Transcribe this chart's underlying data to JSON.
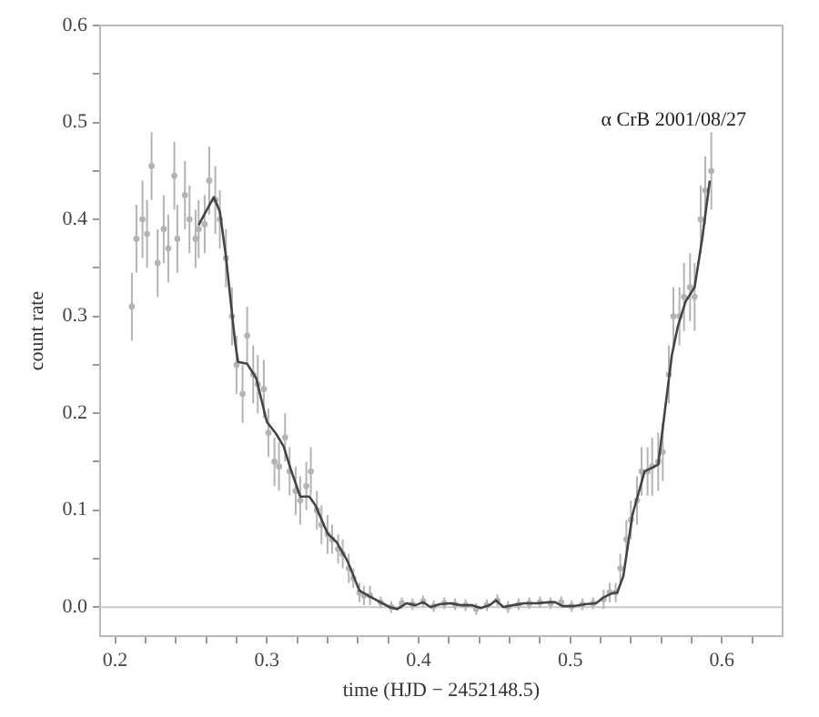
{
  "chart_data": {
    "type": "scatter",
    "xlabel": "time (HJD − 2452148.5)",
    "ylabel": "count rate",
    "annotations": [
      "α CrB 2001/08/27"
    ],
    "xlim": [
      0.19,
      0.64
    ],
    "ylim": [
      -0.03,
      0.6
    ],
    "xticks": [
      0.2,
      {
        "value": 0.22,
        "label": null
      },
      {
        "value": 0.24,
        "label": null
      },
      {
        "value": 0.26,
        "label": null
      },
      {
        "value": 0.28,
        "label": null
      },
      0.3,
      {
        "value": 0.32,
        "label": null
      },
      {
        "value": 0.34,
        "label": null
      },
      {
        "value": 0.36,
        "label": null
      },
      {
        "value": 0.38,
        "label": null
      },
      0.4,
      {
        "value": 0.42,
        "label": null
      },
      {
        "value": 0.44,
        "label": null
      },
      {
        "value": 0.46,
        "label": null
      },
      {
        "value": 0.48,
        "label": null
      },
      0.5,
      {
        "value": 0.52,
        "label": null
      },
      {
        "value": 0.54,
        "label": null
      },
      {
        "value": 0.56,
        "label": null
      },
      {
        "value": 0.58,
        "label": null
      },
      0.6,
      {
        "value": 0.62,
        "label": null
      }
    ],
    "yticks": [
      {
        "value": 0,
        "label": "0.0"
      },
      {
        "value": 0.05,
        "label": null
      },
      0.1,
      {
        "value": 0.15,
        "label": null
      },
      0.2,
      {
        "value": 0.25,
        "label": null
      },
      0.3,
      {
        "value": 0.35,
        "label": null
      },
      0.4,
      {
        "value": 0.45,
        "label": null
      },
      0.5,
      {
        "value": 0.55,
        "label": null
      },
      0.6
    ],
    "grid": false,
    "legend": false,
    "ref_lines": [
      {
        "axis": "y",
        "value": 0,
        "color": "#c8c8c8"
      }
    ],
    "series": [
      {
        "type": "scatter",
        "color": "#b4b4b4",
        "marker": "circle",
        "x": [
          0.211,
          0.214,
          0.218,
          0.221,
          0.224,
          0.228,
          0.232,
          0.235,
          0.239,
          0.241,
          0.246,
          0.249,
          0.253,
          0.255,
          0.259,
          0.262,
          0.266,
          0.269,
          0.273,
          0.277,
          0.28,
          0.284,
          0.287,
          0.291,
          0.294,
          0.298,
          0.301,
          0.305,
          0.308,
          0.312,
          0.315,
          0.319,
          0.322,
          0.326,
          0.329,
          0.333,
          0.336,
          0.34,
          0.343,
          0.347,
          0.35,
          0.354,
          0.357,
          0.361,
          0.364,
          0.368,
          0.375,
          0.382,
          0.389,
          0.396,
          0.403,
          0.41,
          0.417,
          0.424,
          0.431,
          0.438,
          0.445,
          0.452,
          0.459,
          0.466,
          0.473,
          0.48,
          0.487,
          0.494,
          0.501,
          0.508,
          0.515,
          0.522,
          0.526,
          0.53,
          0.533,
          0.537,
          0.54,
          0.544,
          0.547,
          0.551,
          0.554,
          0.558,
          0.561,
          0.565,
          0.568,
          0.572,
          0.575,
          0.579,
          0.582,
          0.586,
          0.589,
          0.593
        ],
        "values": [
          0.31,
          0.38,
          0.4,
          0.385,
          0.455,
          0.355,
          0.39,
          0.37,
          0.445,
          0.38,
          0.425,
          0.4,
          0.38,
          0.39,
          0.395,
          0.44,
          0.42,
          0.4,
          0.36,
          0.3,
          0.25,
          0.22,
          0.28,
          0.24,
          0.23,
          0.225,
          0.18,
          0.15,
          0.145,
          0.175,
          0.14,
          0.12,
          0.11,
          0.125,
          0.14,
          0.1,
          0.085,
          0.075,
          0.07,
          0.06,
          0.055,
          0.04,
          0.03,
          0.015,
          0.012,
          0.012,
          0.005,
          0.0,
          0.004,
          0.003,
          0.006,
          0.001,
          0.004,
          0.003,
          0.002,
          -0.002,
          0.002,
          0.007,
          0.0,
          0.003,
          0.004,
          0.005,
          0.004,
          0.005,
          0.001,
          0.003,
          0.004,
          0.008,
          0.015,
          0.015,
          0.04,
          0.07,
          0.09,
          0.11,
          0.14,
          0.14,
          0.145,
          0.15,
          0.16,
          0.24,
          0.3,
          0.3,
          0.32,
          0.33,
          0.32,
          0.4,
          0.43,
          0.45
        ],
        "errors": [
          0.035,
          0.035,
          0.04,
          0.035,
          0.035,
          0.035,
          0.035,
          0.035,
          0.035,
          0.035,
          0.035,
          0.035,
          0.03,
          0.03,
          0.03,
          0.035,
          0.035,
          0.03,
          0.03,
          0.03,
          0.03,
          0.03,
          0.03,
          0.03,
          0.03,
          0.03,
          0.025,
          0.025,
          0.025,
          0.025,
          0.025,
          0.025,
          0.025,
          0.025,
          0.025,
          0.02,
          0.02,
          0.02,
          0.015,
          0.015,
          0.015,
          0.015,
          0.01,
          0.01,
          0.01,
          0.01,
          0.006,
          0.006,
          0.006,
          0.006,
          0.006,
          0.006,
          0.006,
          0.006,
          0.006,
          0.006,
          0.006,
          0.006,
          0.006,
          0.006,
          0.006,
          0.006,
          0.006,
          0.006,
          0.006,
          0.006,
          0.006,
          0.01,
          0.01,
          0.01,
          0.015,
          0.02,
          0.02,
          0.025,
          0.025,
          0.025,
          0.03,
          0.03,
          0.03,
          0.03,
          0.03,
          0.03,
          0.035,
          0.035,
          0.035,
          0.035,
          0.035,
          0.04
        ]
      },
      {
        "type": "line",
        "color": "#444444",
        "marker": "none",
        "x": [
          0.255,
          0.265,
          0.269,
          0.273,
          0.279,
          0.281,
          0.287,
          0.293,
          0.3,
          0.306,
          0.311,
          0.316,
          0.322,
          0.328,
          0.332,
          0.34,
          0.346,
          0.353,
          0.361,
          0.369,
          0.381,
          0.386,
          0.392,
          0.398,
          0.403,
          0.408,
          0.414,
          0.421,
          0.428,
          0.435,
          0.441,
          0.447,
          0.451,
          0.456,
          0.462,
          0.47,
          0.478,
          0.486,
          0.49,
          0.495,
          0.502,
          0.51,
          0.517,
          0.522,
          0.527,
          0.531,
          0.535,
          0.541,
          0.549,
          0.558,
          0.561,
          0.567,
          0.571,
          0.576,
          0.582,
          0.587,
          0.592
        ],
        "values": [
          0.394,
          0.423,
          0.408,
          0.362,
          0.274,
          0.253,
          0.251,
          0.236,
          0.191,
          0.179,
          0.166,
          0.141,
          0.114,
          0.114,
          0.105,
          0.076,
          0.067,
          0.048,
          0.017,
          0.01,
          0.0,
          -0.002,
          0.004,
          0.002,
          0.005,
          0.0,
          0.003,
          0.004,
          0.002,
          0.002,
          -0.001,
          0.002,
          0.007,
          0.0,
          0.002,
          0.004,
          0.004,
          0.005,
          0.005,
          0.001,
          0.001,
          0.003,
          0.004,
          0.01,
          0.014,
          0.015,
          0.032,
          0.095,
          0.14,
          0.147,
          0.185,
          0.26,
          0.29,
          0.315,
          0.33,
          0.38,
          0.44
        ]
      }
    ]
  }
}
